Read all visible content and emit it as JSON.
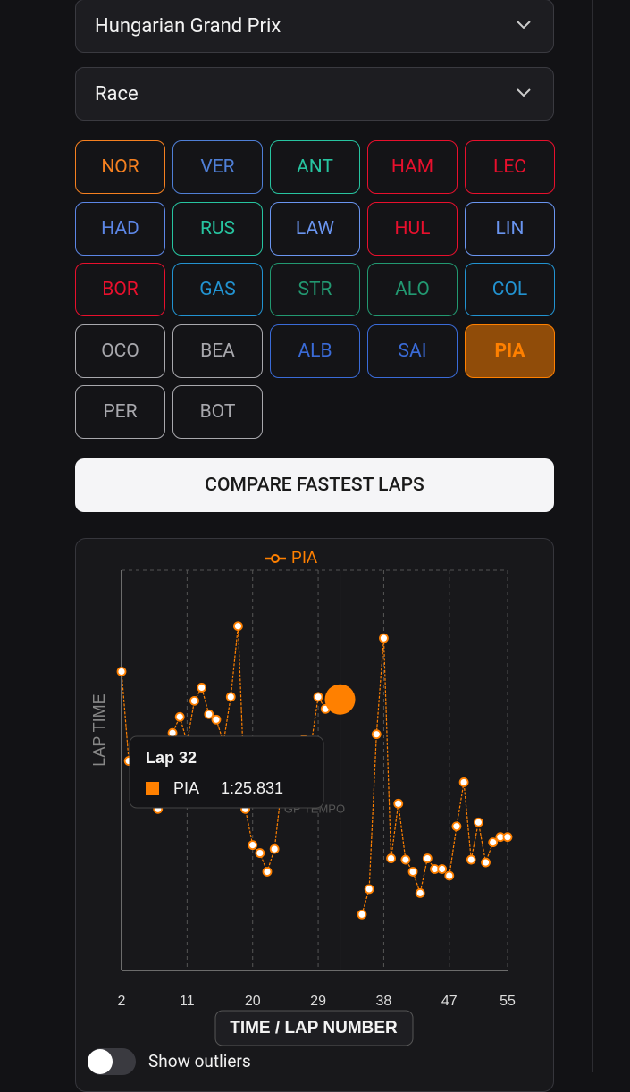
{
  "selects": {
    "grand_prix": "Hungarian Grand Prix",
    "session": "Race"
  },
  "drivers": [
    {
      "code": "NOR",
      "color": "#f58020"
    },
    {
      "code": "VER",
      "color": "#4f7fd6"
    },
    {
      "code": "ANT",
      "color": "#27c4a0"
    },
    {
      "code": "HAM",
      "color": "#e8102d"
    },
    {
      "code": "LEC",
      "color": "#e8102d"
    },
    {
      "code": "HAD",
      "color": "#5c86e6"
    },
    {
      "code": "RUS",
      "color": "#27c4a0"
    },
    {
      "code": "LAW",
      "color": "#6a95f0"
    },
    {
      "code": "HUL",
      "color": "#e8102d"
    },
    {
      "code": "LIN",
      "color": "#6a95f0"
    },
    {
      "code": "BOR",
      "color": "#e8102d"
    },
    {
      "code": "GAS",
      "color": "#2293d1"
    },
    {
      "code": "STR",
      "color": "#229971"
    },
    {
      "code": "ALO",
      "color": "#229971"
    },
    {
      "code": "COL",
      "color": "#2293d1"
    },
    {
      "code": "OCO",
      "color": "#a8a8ad"
    },
    {
      "code": "BEA",
      "color": "#a8a8ad"
    },
    {
      "code": "ALB",
      "color": "#3a6bd8"
    },
    {
      "code": "SAI",
      "color": "#3a6bd8"
    },
    {
      "code": "PIA",
      "color": "#ff8000",
      "selected": true
    },
    {
      "code": "PER",
      "color": "#a8a8ad"
    },
    {
      "code": "BOT",
      "color": "#a8a8ad"
    }
  ],
  "compare_button": "COMPARE FASTEST LAPS",
  "chart_data": {
    "type": "line",
    "x_label": "TIME / LAP NUMBER",
    "y_label": "LAP TIME",
    "watermark": "GP TEMPO",
    "x": [
      2,
      3,
      4,
      5,
      6,
      7,
      8,
      9,
      10,
      11,
      12,
      13,
      14,
      15,
      16,
      17,
      18,
      19,
      20,
      21,
      22,
      23,
      24,
      25,
      26,
      27,
      28,
      29,
      30,
      31,
      32,
      33,
      34,
      35,
      36,
      37,
      38,
      39,
      40,
      41,
      42,
      43,
      44,
      45,
      46,
      47,
      48,
      49,
      50,
      51,
      52,
      53,
      54,
      55
    ],
    "series": [
      {
        "name": "PIA",
        "color": "#ff8000",
        "values": [
          86.04,
          85.37,
          85.25,
          85.18,
          85.11,
          85.01,
          85.38,
          85.58,
          85.7,
          85.51,
          85.82,
          85.92,
          85.72,
          85.68,
          85.51,
          85.85,
          86.38,
          85.01,
          84.74,
          84.68,
          84.54,
          84.71,
          85.18,
          85.31,
          85.45,
          85.53,
          85.48,
          85.85,
          85.76,
          85.78,
          85.831,
          null,
          null,
          84.22,
          84.41,
          85.57,
          86.29,
          84.64,
          85.05,
          84.63,
          84.54,
          84.38,
          84.64,
          84.56,
          84.56,
          84.51,
          84.88,
          85.21,
          84.63,
          84.91,
          84.61,
          84.76,
          84.8,
          84.8
        ]
      }
    ],
    "xlim": [
      2,
      55
    ],
    "xticks": [
      2,
      11,
      20,
      29,
      38,
      47,
      55
    ],
    "ylim": [
      83.8,
      86.8
    ],
    "grid": true,
    "tooltip": {
      "x": 32,
      "title": "Lap 32",
      "series": "PIA",
      "value": "1:25.831"
    }
  },
  "toggle": {
    "label": "Show outliers",
    "on": false
  }
}
